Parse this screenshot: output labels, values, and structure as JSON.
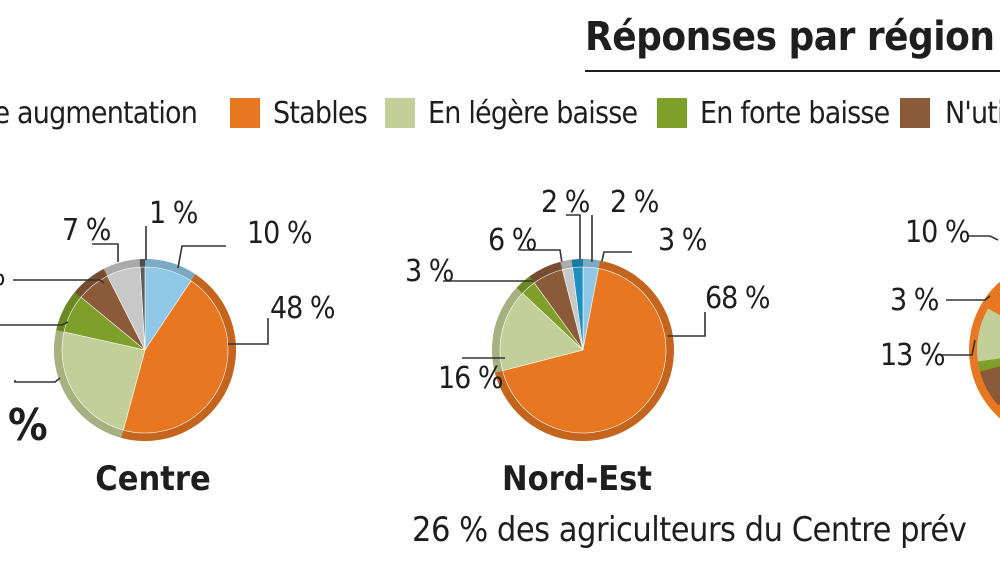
{
  "title": "Réponses par région",
  "footer_note": "26 % des agriculteurs du Centre prév",
  "colors": {
    "forte_hausse": "#8fc8e6",
    "legere_hausse": "#c8c8c8",
    "stables": "#e87722",
    "legere_baisse": "#c3cf98",
    "forte_baisse": "#7ea02a",
    "nutilise": "#8b5a38"
  },
  "legend": [
    {
      "label": "ère augmentation",
      "color": "#c8c8c8"
    },
    {
      "label": "Stables",
      "color": "#e87722"
    },
    {
      "label": "En légère baisse",
      "color": "#c3cf98"
    },
    {
      "label": "En forte baisse",
      "color": "#7ea02a"
    },
    {
      "label": "N'uti",
      "color": "#8b5a38"
    }
  ],
  "chart_data": [
    {
      "type": "pie",
      "title": "Centre",
      "slices": [
        {
          "value": 10,
          "label": "10 %",
          "color": "#8fc8e6"
        },
        {
          "value": 48,
          "label": "48 %",
          "color": "#e87722"
        },
        {
          "value": 26,
          "label": "",
          "color": "#c3cf98"
        },
        {
          "value": 8,
          "label": "",
          "color": "#7ea02a"
        },
        {
          "value": 7,
          "label": "",
          "color": "#8b5a38"
        },
        {
          "value": 7,
          "label": "7 %",
          "color": "#c8c8c8"
        },
        {
          "value": 1,
          "label": "1 %",
          "color": "#5c5c5c"
        }
      ]
    },
    {
      "type": "pie",
      "title": "Nord-Est",
      "slices": [
        {
          "value": 3,
          "label": "3 %",
          "color": "#8fc8e6"
        },
        {
          "value": 68,
          "label": "68 %",
          "color": "#e87722"
        },
        {
          "value": 16,
          "label": "16 %",
          "color": "#c3cf98"
        },
        {
          "value": 3,
          "label": "3 %",
          "color": "#7ea02a"
        },
        {
          "value": 6,
          "label": "6 %",
          "color": "#8b5a38"
        },
        {
          "value": 2,
          "label": "2 %",
          "color": "#c8c8c8"
        },
        {
          "value": 2,
          "label": "2 %",
          "color": "#1f8fc0"
        }
      ]
    },
    {
      "type": "pie",
      "title": "",
      "slices": [
        {
          "value": 10,
          "label": "10 %",
          "color": "#8b5a38"
        },
        {
          "value": 3,
          "label": "3 %",
          "color": "#7ea02a"
        },
        {
          "value": 13,
          "label": "13 %",
          "color": "#c3cf98"
        }
      ]
    }
  ],
  "clipped_texts": {
    "centre_left_pct_1": "%",
    "centre_big_label": "%"
  }
}
